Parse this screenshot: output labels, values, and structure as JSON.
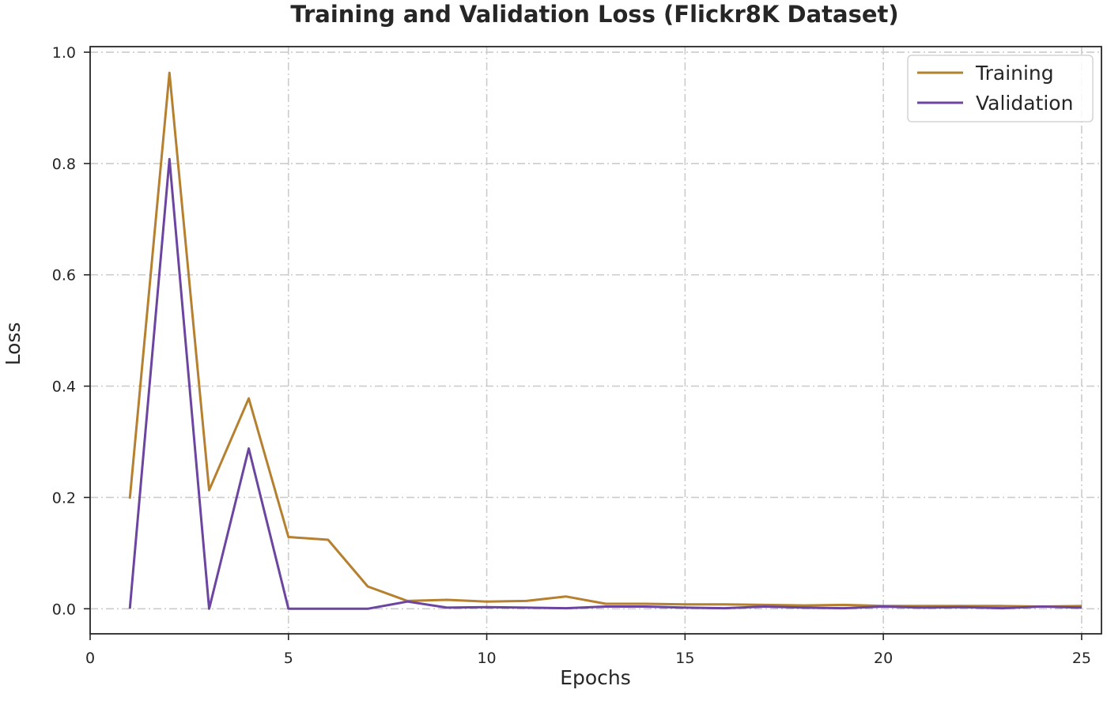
{
  "chart_data": {
    "type": "line",
    "title": "Training and Validation Loss (Flickr8K Dataset)",
    "xlabel": "Epochs",
    "ylabel": "Loss",
    "xlim": [
      0,
      25.5
    ],
    "ylim": [
      -0.045,
      1.01
    ],
    "xticks": [
      0,
      5,
      10,
      15,
      20,
      25
    ],
    "xtick_labels": [
      "0",
      "5",
      "10",
      "15",
      "20",
      "25"
    ],
    "yticks": [
      0.0,
      0.2,
      0.4,
      0.6,
      0.8,
      1.0
    ],
    "ytick_labels": [
      "0.0",
      "0.2",
      "0.4",
      "0.6",
      "0.8",
      "1.0"
    ],
    "grid": true,
    "legend_position": "top-right",
    "x": [
      1,
      2,
      3,
      4,
      5,
      6,
      7,
      8,
      9,
      10,
      11,
      12,
      13,
      14,
      15,
      16,
      17,
      18,
      19,
      20,
      21,
      22,
      23,
      24,
      25
    ],
    "series": [
      {
        "name": "Training",
        "color": "#b5802f",
        "values": [
          0.198,
          0.963,
          0.213,
          0.378,
          0.129,
          0.124,
          0.04,
          0.014,
          0.016,
          0.013,
          0.014,
          0.022,
          0.009,
          0.009,
          0.008,
          0.008,
          0.007,
          0.006,
          0.007,
          0.005,
          0.005,
          0.005,
          0.005,
          0.004,
          0.005
        ]
      },
      {
        "name": "Validation",
        "color": "#6c45a0",
        "values": [
          0.0,
          0.808,
          0.0,
          0.288,
          0.0,
          0.0,
          0.0,
          0.013,
          0.002,
          0.003,
          0.002,
          0.001,
          0.004,
          0.004,
          0.002,
          0.001,
          0.004,
          0.002,
          0.001,
          0.004,
          0.002,
          0.003,
          0.001,
          0.004,
          0.002
        ]
      }
    ]
  }
}
